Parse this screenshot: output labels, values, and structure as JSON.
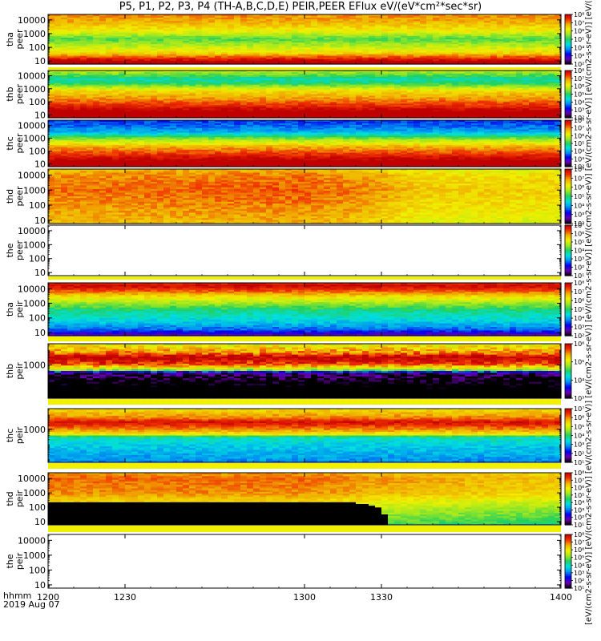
{
  "title": "P5, P1, P2, P3, P4 (TH-A,B,C,D,E) PEIR,PEER EFlux eV/(eV*cm²*sec*sr)",
  "footer": {
    "line1": "hhmm",
    "line2": "2019 Aug 07"
  },
  "colorbar_title": "[eV/(cm2-s-sr-eV)] [eV/(cm2-s-sr-eV)] [eV/(cm2-s-sr-eV)] [eV/(cm2-s-sr-eV)] [eV/(cm2-s-sr-eV)] [eV/(cm2-s-sr-eV)] [eV/(cm2-s-sr-eV)] [eV/(cm2-s-sr-eV)] [eV/(cm2-s-sr-eV)] [eV/(cm2-s-sr-eV)]",
  "colors": {
    "colormap": [
      "#000000",
      "#6a00b0",
      "#0000f0",
      "#0090f0",
      "#00e0e0",
      "#20d060",
      "#a0e820",
      "#f0f000",
      "#f0b000",
      "#f03000",
      "#c00000"
    ]
  },
  "chart_data": {
    "type": "heatmap",
    "x_tick_labels": [
      "1200",
      "1230",
      "1300",
      "1330",
      "1400"
    ],
    "x_ticks": [
      1200,
      1230,
      1300,
      1330,
      1400
    ],
    "xlim": [
      1200,
      1400
    ],
    "x_scale": "time hhmm",
    "panels": [
      {
        "id": "tha-peer",
        "ylabel": [
          "tha",
          "peer"
        ],
        "yticks": [
          "10000",
          "1000",
          "100",
          "10"
        ],
        "yticks_val": [
          10000,
          1000,
          100,
          10
        ],
        "ylim": [
          6,
          25000
        ],
        "y_scale": "log",
        "cbar": {
          "ticks": [
            "10⁸",
            "10⁷",
            "10⁶",
            "10⁵",
            "10⁴",
            "10³",
            "10²"
          ],
          "exponents": [
            8,
            7,
            6,
            5,
            4,
            3,
            2
          ]
        },
        "spectrum": [
          {
            "e": 6,
            "v": 8.6
          },
          {
            "e": 40,
            "v": 6.4
          },
          {
            "e": 100,
            "v": 5.9
          },
          {
            "e": 400,
            "v": 5.2
          },
          {
            "e": 1500,
            "v": 6.2
          },
          {
            "e": 8000,
            "v": 6.8
          },
          {
            "e": 25000,
            "v": 7.0
          }
        ],
        "time_var": [
          {
            "t": 1200,
            "dv": 0
          },
          {
            "t": 1400,
            "dv": 0
          }
        ],
        "fill_band": null,
        "gaps": []
      },
      {
        "id": "thb-peer",
        "ylabel": [
          "thb",
          "peer"
        ],
        "yticks": [
          "10000",
          "1000",
          "100",
          "10"
        ],
        "yticks_val": [
          10000,
          1000,
          100,
          10
        ],
        "ylim": [
          6,
          25000
        ],
        "y_scale": "log",
        "cbar": {
          "ticks": [
            "10⁸",
            "10⁷",
            "10⁶",
            "10⁵",
            "10⁴",
            "10³",
            "10²"
          ],
          "exponents": [
            8,
            7,
            6,
            5,
            4,
            3,
            2
          ]
        },
        "spectrum": [
          {
            "e": 6,
            "v": 8.5
          },
          {
            "e": 15,
            "v": 8.3
          },
          {
            "e": 40,
            "v": 7.6
          },
          {
            "e": 150,
            "v": 7.0
          },
          {
            "e": 700,
            "v": 6.4
          },
          {
            "e": 2500,
            "v": 5.0
          },
          {
            "e": 5000,
            "v": 4.6
          },
          {
            "e": 10000,
            "v": 5.2
          },
          {
            "e": 25000,
            "v": 5.8
          }
        ],
        "time_var": [
          {
            "t": 1200,
            "dv": 0
          },
          {
            "t": 1400,
            "dv": 0
          }
        ],
        "fill_band": null,
        "gaps": []
      },
      {
        "id": "thc-peer",
        "ylabel": [
          "thc",
          "peer"
        ],
        "yticks": [
          "10000",
          "1000",
          "100",
          "10"
        ],
        "yticks_val": [
          10000,
          1000,
          100,
          10
        ],
        "ylim": [
          6,
          25000
        ],
        "y_scale": "log",
        "cbar": {
          "ticks": [
            "10⁸",
            "10⁷",
            "10⁶",
            "10⁵",
            "10⁴",
            "10³",
            "10²"
          ],
          "exponents": [
            8,
            7,
            6,
            5,
            4,
            3,
            2
          ]
        },
        "spectrum": [
          {
            "e": 6,
            "v": 8.4
          },
          {
            "e": 15,
            "v": 8.2
          },
          {
            "e": 50,
            "v": 7.5
          },
          {
            "e": 200,
            "v": 6.8
          },
          {
            "e": 800,
            "v": 5.6
          },
          {
            "e": 3000,
            "v": 4.0
          },
          {
            "e": 10000,
            "v": 3.6
          },
          {
            "e": 25000,
            "v": 3.4
          }
        ],
        "time_var": [
          {
            "t": 1200,
            "dv": 0
          },
          {
            "t": 1400,
            "dv": 0
          }
        ],
        "fill_band": null,
        "gaps": []
      },
      {
        "id": "thd-peer",
        "ylabel": [
          "thd",
          "peer"
        ],
        "yticks": [
          "10000",
          "1000",
          "100",
          "10"
        ],
        "yticks_val": [
          10000,
          1000,
          100,
          10
        ],
        "ylim": [
          6,
          25000
        ],
        "y_scale": "log",
        "cbar": {
          "ticks": [
            "10⁸",
            "10⁷",
            "10⁶",
            "10⁵",
            "10⁴",
            "10³",
            "10²"
          ],
          "exponents": [
            8,
            7,
            6,
            5,
            4,
            3,
            2
          ]
        },
        "spectrum": [
          {
            "e": 6,
            "v": 6.6
          },
          {
            "e": 100,
            "v": 6.9
          },
          {
            "e": 1000,
            "v": 7.1
          },
          {
            "e": 10000,
            "v": 6.9
          },
          {
            "e": 25000,
            "v": 6.6
          }
        ],
        "time_var": [
          {
            "t": 1200,
            "dv": 0
          },
          {
            "t": 1300,
            "dv": 0.15
          },
          {
            "t": 1325,
            "dv": -0.1
          },
          {
            "t": 1345,
            "dv": -0.5
          },
          {
            "t": 1400,
            "dv": -0.6
          }
        ],
        "fill_band": null,
        "gaps": []
      },
      {
        "id": "the-peer",
        "ylabel": [
          "the",
          "peer"
        ],
        "yticks": [
          "10000",
          "1000",
          "100",
          "10"
        ],
        "yticks_val": [
          10000,
          1000,
          100,
          10
        ],
        "ylim": [
          6,
          25000
        ],
        "y_scale": "log",
        "cbar": {
          "ticks": [
            "10⁷",
            "10⁶",
            "10⁵",
            "10⁴",
            "10³",
            "10²",
            "10¹"
          ],
          "exponents": [
            7,
            6,
            5,
            4,
            3,
            2,
            1
          ]
        },
        "spectrum": [],
        "time_var": [],
        "fill_band": null,
        "gaps": []
      },
      {
        "id": "tha-peir",
        "ylabel": [
          "tha",
          "peir"
        ],
        "yticks": [
          "10000",
          "1000",
          "100",
          "10"
        ],
        "yticks_val": [
          10000,
          1000,
          100,
          10
        ],
        "ylim": [
          6,
          25000
        ],
        "y_scale": "log",
        "cbar": {
          "ticks": [
            "10⁸",
            "10⁷",
            "10⁶",
            "10⁵",
            "10⁴",
            "10³",
            "10²"
          ],
          "exponents": [
            8,
            7,
            6,
            5,
            4,
            3,
            2
          ]
        },
        "spectrum": [
          {
            "e": 6,
            "v": 2.5
          },
          {
            "e": 15,
            "v": 3.6
          },
          {
            "e": 60,
            "v": 4.3
          },
          {
            "e": 300,
            "v": 4.8
          },
          {
            "e": 1000,
            "v": 5.6
          },
          {
            "e": 3000,
            "v": 6.4
          },
          {
            "e": 8000,
            "v": 7.4
          },
          {
            "e": 15000,
            "v": 7.9
          },
          {
            "e": 25000,
            "v": 7.5
          }
        ],
        "time_var": [
          {
            "t": 1200,
            "dv": 0
          },
          {
            "t": 1400,
            "dv": 0
          }
        ],
        "fill_band": null,
        "gaps": []
      },
      {
        "id": "thb-peir",
        "ylabel": [
          "thb",
          "peir"
        ],
        "yticks": [
          "1000"
        ],
        "yticks_val": [
          1000
        ],
        "ylim": [
          6,
          25000
        ],
        "y_scale": "log",
        "cbar": {
          "ticks": [
            "10⁶",
            "10⁵",
            "10⁴",
            "10³"
          ],
          "exponents": [
            6,
            5,
            4,
            3
          ]
        },
        "spectrum": [
          {
            "e": 6,
            "v": 2.6
          },
          {
            "e": 60,
            "v": 2.9
          },
          {
            "e": 300,
            "v": 3.2
          },
          {
            "e": 450,
            "v": 4.8
          },
          {
            "e": 1000,
            "v": 5.6
          },
          {
            "e": 3000,
            "v": 6.1
          },
          {
            "e": 6000,
            "v": 5.5
          },
          {
            "e": 15000,
            "v": 5.2
          },
          {
            "e": 25000,
            "v": 5.0
          }
        ],
        "time_var": [
          {
            "t": 1200,
            "dv": 0
          },
          {
            "t": 1400,
            "dv": 0
          }
        ],
        "fill_band": null,
        "gaps": []
      },
      {
        "id": "thc-peir",
        "ylabel": [
          "thc",
          "peir"
        ],
        "yticks": [
          "1000"
        ],
        "yticks_val": [
          1000
        ],
        "ylim": [
          6,
          25000
        ],
        "y_scale": "log",
        "cbar": {
          "ticks": [
            "10⁷",
            "10⁶",
            "10⁵",
            "10⁴",
            "10³",
            "10²",
            "10¹"
          ],
          "exponents": [
            7,
            6,
            5,
            4,
            3,
            2,
            1
          ]
        },
        "spectrum": [
          {
            "e": 6,
            "v": 2.8
          },
          {
            "e": 60,
            "v": 3.2
          },
          {
            "e": 300,
            "v": 3.6
          },
          {
            "e": 450,
            "v": 5.2
          },
          {
            "e": 1000,
            "v": 6.0
          },
          {
            "e": 3000,
            "v": 6.8
          },
          {
            "e": 6000,
            "v": 6.0
          },
          {
            "e": 15000,
            "v": 5.6
          },
          {
            "e": 25000,
            "v": 5.4
          }
        ],
        "time_var": [
          {
            "t": 1200,
            "dv": 0
          },
          {
            "t": 1400,
            "dv": 0
          }
        ],
        "fill_band": null,
        "gaps": []
      },
      {
        "id": "thd-peir",
        "ylabel": [
          "thd",
          "peir"
        ],
        "yticks": [
          "10000",
          "1000",
          "100",
          "10"
        ],
        "yticks_val": [
          10000,
          1000,
          100,
          10
        ],
        "ylim": [
          6,
          25000
        ],
        "y_scale": "log",
        "cbar": {
          "ticks": [
            "10⁸",
            "10⁷",
            "10⁶",
            "10⁵",
            "10⁴",
            "10³",
            "10²",
            "10¹"
          ],
          "exponents": [
            8,
            7,
            6,
            5,
            4,
            3,
            2,
            1
          ]
        },
        "spectrum": [
          {
            "e": 6,
            "v": 5.0
          },
          {
            "e": 100,
            "v": 5.8
          },
          {
            "e": 1000,
            "v": 6.8
          },
          {
            "e": 10000,
            "v": 7.0
          },
          {
            "e": 25000,
            "v": 6.7
          }
        ],
        "time_var": [
          {
            "t": 1200,
            "dv": 0
          },
          {
            "t": 1300,
            "dv": 0
          },
          {
            "t": 1330,
            "dv": -0.3
          },
          {
            "t": 1400,
            "dv": -0.6
          }
        ],
        "fill_band": {
          "emax": [
            {
              "t": 1200,
              "e": 200
            },
            {
              "t": 1320,
              "e": 200
            },
            {
              "t": 1330,
              "e": 80
            },
            {
              "t": 1332,
              "e": 6
            }
          ],
          "value": "black"
        },
        "gaps": []
      },
      {
        "id": "the-peir",
        "ylabel": [
          "the",
          "peir"
        ],
        "yticks": [
          "10000",
          "1000",
          "100",
          "10"
        ],
        "yticks_val": [
          10000,
          1000,
          100,
          10
        ],
        "ylim": [
          6,
          25000
        ],
        "y_scale": "log",
        "cbar": {
          "ticks": [
            "10⁸",
            "10⁷",
            "10⁶",
            "10⁵",
            "10⁴",
            "10³",
            "10²",
            "10¹"
          ],
          "exponents": [
            8,
            7,
            6,
            5,
            4,
            3,
            2,
            1
          ]
        },
        "spectrum": [],
        "time_var": [],
        "fill_band": null,
        "gaps": []
      }
    ]
  }
}
